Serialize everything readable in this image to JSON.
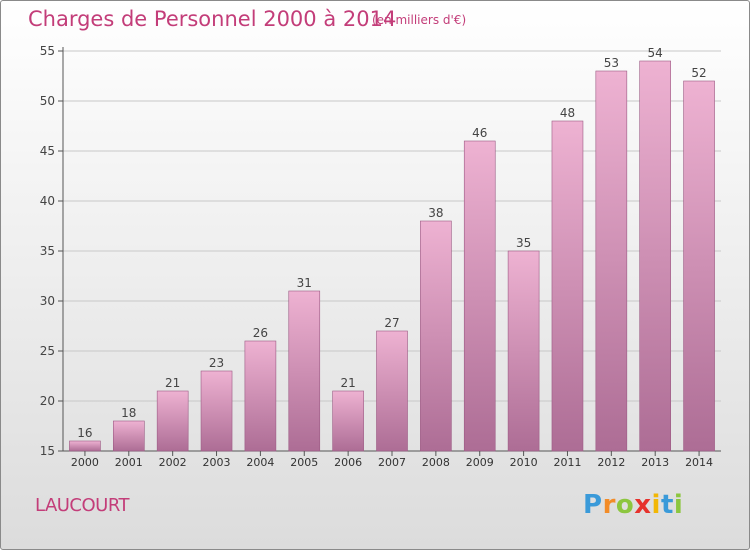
{
  "title": "Charges de Personnel 2000 à 2014",
  "subtitle": "(en milliers d'€)",
  "place": "LAUCOURT",
  "logo": {
    "letters": [
      "P",
      "r",
      "o",
      "x",
      "i",
      "t",
      "i"
    ],
    "colors": [
      "#3a9ad9",
      "#f28c28",
      "#8cc63f",
      "#e6322d",
      "#f2b705",
      "#3a9ad9",
      "#8cc63f"
    ]
  },
  "colors": {
    "bar_light": "#eeb2d2",
    "bar_dark": "#ad6d95",
    "bar_edge": "#9c5a84",
    "accent": "#c33d79",
    "grid": "#c8c8c8"
  },
  "chart_data": {
    "type": "bar",
    "categories": [
      "2000",
      "2001",
      "2002",
      "2003",
      "2004",
      "2005",
      "2006",
      "2007",
      "2008",
      "2009",
      "2010",
      "2011",
      "2012",
      "2013",
      "2014"
    ],
    "values": [
      16,
      18,
      21,
      23,
      26,
      31,
      21,
      27,
      38,
      46,
      35,
      48,
      53,
      54,
      52
    ],
    "ylim": [
      15,
      55
    ],
    "yticks": [
      15,
      20,
      25,
      30,
      35,
      40,
      45,
      50,
      55
    ],
    "grid": true,
    "data_labels": true
  }
}
